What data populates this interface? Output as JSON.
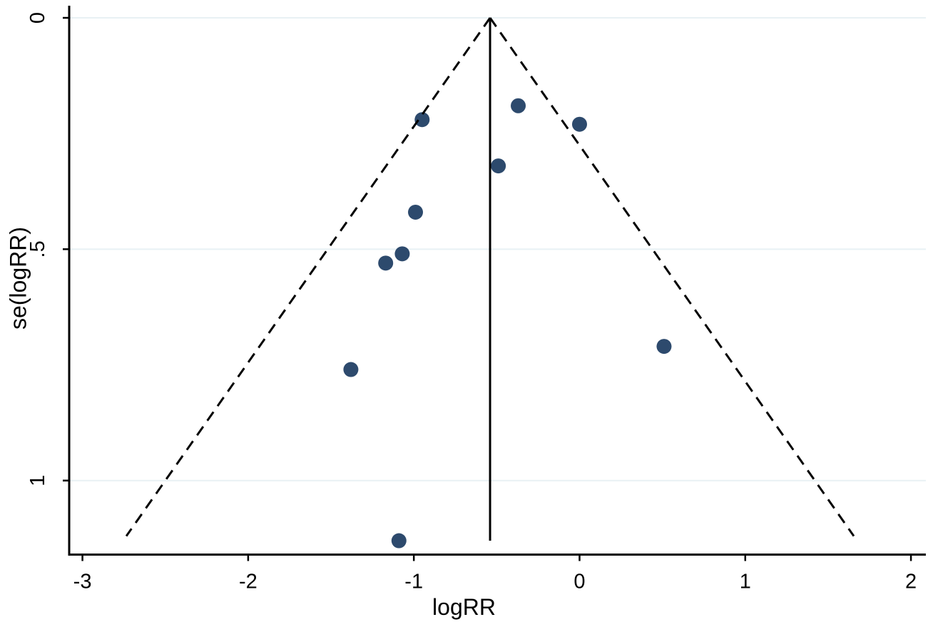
{
  "figure": {
    "kind": "funnel-plot",
    "background_color": "#ffffff"
  },
  "chart_data": {
    "type": "scatter",
    "subtype": "funnel-plot",
    "title": "",
    "xlabel": "logRR",
    "ylabel": "se(logRR)",
    "x_ticks": [
      {
        "value": -3,
        "label": "-3"
      },
      {
        "value": -2,
        "label": "-2"
      },
      {
        "value": -1,
        "label": "-1"
      },
      {
        "value": 0,
        "label": "0"
      },
      {
        "value": 1,
        "label": "1"
      },
      {
        "value": 2,
        "label": "2"
      }
    ],
    "y_ticks": [
      {
        "value": 0,
        "label": "0"
      },
      {
        "value": 0.5,
        "label": ".5"
      },
      {
        "value": 1,
        "label": "1"
      }
    ],
    "xlim": [
      -3.08,
      2.09
    ],
    "ylim": [
      0,
      1.16
    ],
    "y_axis_inverted": true,
    "grid": "horizontal-y-ticks-only",
    "legend": "none",
    "points": [
      {
        "logRR": -0.95,
        "se": 0.22
      },
      {
        "logRR": -0.37,
        "se": 0.19
      },
      {
        "logRR": 0.0,
        "se": 0.23
      },
      {
        "logRR": -0.49,
        "se": 0.32
      },
      {
        "logRR": -0.99,
        "se": 0.42
      },
      {
        "logRR": -1.07,
        "se": 0.51
      },
      {
        "logRR": -1.17,
        "se": 0.53
      },
      {
        "logRR": -1.38,
        "se": 0.76
      },
      {
        "logRR": 0.51,
        "se": 0.71
      },
      {
        "logRR": -1.09,
        "se": 1.13
      }
    ],
    "pooled_estimate_line": {
      "x": -0.54,
      "se_from": 0,
      "se_to": 1.13
    },
    "pseudo_confidence_limits": {
      "center": -0.54,
      "z": 1.96,
      "se_from": 0,
      "se_to": 1.12
    },
    "colors": {
      "point_fill": "#2d4a6d",
      "line": "#000000",
      "grid": "#e8f1f4",
      "axis": "#000000",
      "text": "#000000",
      "background": "#ffffff"
    }
  }
}
